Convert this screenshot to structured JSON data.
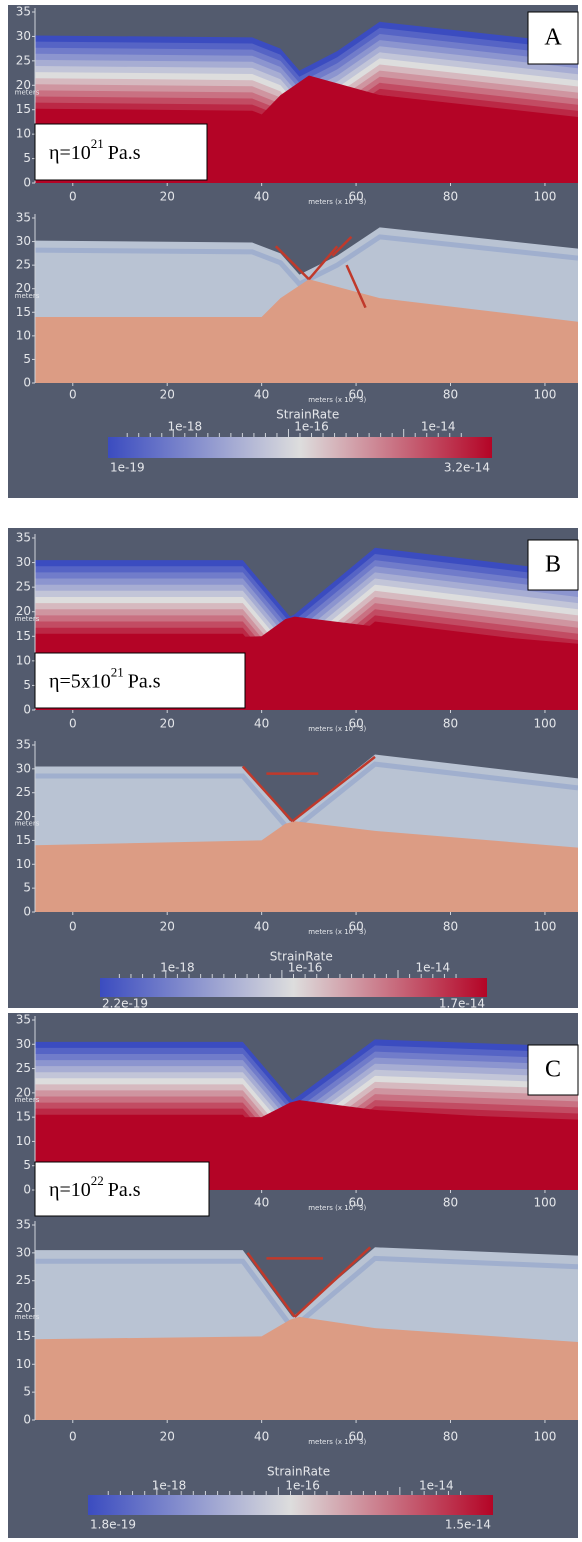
{
  "axes": {
    "yticks": [
      "0",
      "5",
      "10",
      "15",
      "20",
      "25",
      "30",
      "35"
    ],
    "xticks": [
      "0",
      "20",
      "40",
      "60",
      "80",
      "100"
    ],
    "y_label": "meters",
    "x_label": "meters (x 10^3)"
  },
  "panels": [
    {
      "label": "A",
      "eta": {
        "prefix": "η=10",
        "exponent": "21",
        "unit": "Pa.s"
      },
      "colorbar": {
        "title": "StrainRate",
        "ticks": [
          "1e-18",
          "1e-16",
          "1e-14"
        ],
        "min": "1e-19",
        "max": "3.2e-14"
      }
    },
    {
      "label": "B",
      "eta": {
        "prefix": "η=5x10",
        "exponent": "21",
        "unit": "Pa.s"
      },
      "colorbar": {
        "title": "StrainRate",
        "ticks": [
          "1e-18",
          "1e-16",
          "1e-14"
        ],
        "min": "2.2e-19",
        "max": "1.7e-14"
      }
    },
    {
      "label": "C",
      "eta": {
        "prefix": "η=10",
        "exponent": "22",
        "unit": "Pa.s"
      },
      "colorbar": {
        "title": "StrainRate",
        "ticks": [
          "1e-18",
          "1e-16",
          "1e-14"
        ],
        "min": "1.8e-19",
        "max": "1.5e-14"
      }
    }
  ]
}
